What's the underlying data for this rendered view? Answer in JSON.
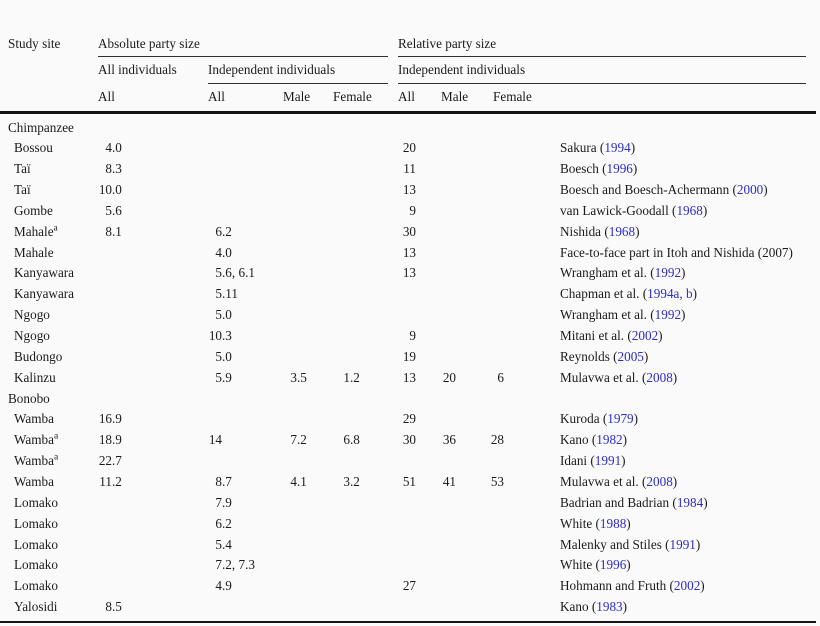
{
  "colors": {
    "link_blue": "#2b2bce",
    "text": "#1b1b1b",
    "rule": "#2e2e2e"
  },
  "table": {
    "header": {
      "study_site": "Study site",
      "group_absolute": "Absolute party size",
      "group_relative": "Relative party size",
      "abs_all_individuals": "All individuals",
      "abs_independent_individuals": "Independent individuals",
      "rel_independent_individuals": "Independent individuals",
      "sub": [
        "All",
        "All",
        "Male",
        "Female",
        "All",
        "Male",
        "Female"
      ]
    },
    "rows": [
      {
        "type": "group",
        "site": "Chimpanzee"
      },
      {
        "type": "data",
        "site": "Bossou",
        "abs_all": "4.0",
        "rel_all": "20",
        "ref_pre": "Sakura (",
        "ref_year": "1994",
        "ref_post": ")"
      },
      {
        "type": "data",
        "site": "Taï",
        "abs_all": "8.3",
        "rel_all": "11",
        "ref_pre": "Boesch (",
        "ref_year": "1996",
        "ref_post": ")"
      },
      {
        "type": "data",
        "site": "Taï",
        "abs_all": "10.0",
        "rel_all": "13",
        "ref_pre": "Boesch and Boesch-Achermann (",
        "ref_year": "2000",
        "ref_post": ")"
      },
      {
        "type": "data",
        "site": "Gombe",
        "abs_all": "5.6",
        "rel_all": "9",
        "ref_pre": "van Lawick-Goodall (",
        "ref_year": "1968",
        "ref_post": ")"
      },
      {
        "type": "data",
        "site": "Mahale",
        "sup": "a",
        "abs_all": "8.1",
        "ind_all": "6.2",
        "rel_all": "30",
        "ref_pre": "Nishida (",
        "ref_year": "1968",
        "ref_post": ")"
      },
      {
        "type": "data",
        "site": "Mahale",
        "ind_all": "4.0",
        "rel_all": "13",
        "ref_pre": "Face-to-face part in Itoh and Nishida (2007)",
        "ref_year": "",
        "ref_post": ""
      },
      {
        "type": "data",
        "site": "Kanyawara",
        "ind_all": "5.6, 6.1",
        "rel_all": "13",
        "ref_pre": "Wrangham et al. (",
        "ref_year": "1992",
        "ref_post": ")"
      },
      {
        "type": "data",
        "site": "Kanyawara",
        "ind_all": "5.11",
        "ref_pre": "Chapman et al. (",
        "ref_year": "1994a, b",
        "ref_post": ")"
      },
      {
        "type": "data",
        "site": "Ngogo",
        "ind_all": "5.0",
        "ref_pre": "Wrangham et al. (",
        "ref_year": "1992",
        "ref_post": ")"
      },
      {
        "type": "data",
        "site": "Ngogo",
        "ind_all": "10.3",
        "rel_all": "9",
        "ref_pre": "Mitani et al. (",
        "ref_year": "2002",
        "ref_post": ")"
      },
      {
        "type": "data",
        "site": "Budongo",
        "ind_all": "5.0",
        "rel_all": "19",
        "ref_pre": "Reynolds (",
        "ref_year": "2005",
        "ref_post": ")"
      },
      {
        "type": "data",
        "site": "Kalinzu",
        "ind_all": "5.9",
        "ind_male": "3.5",
        "ind_female": "1.2",
        "rel_all": "13",
        "rel_male": "20",
        "rel_female": "6",
        "ref_pre": "Mulavwa et al. (",
        "ref_year": "2008",
        "ref_post": ")"
      },
      {
        "type": "group",
        "site": "Bonobo"
      },
      {
        "type": "data",
        "site": "Wamba",
        "abs_all": "16.9",
        "rel_all": "29",
        "ref_pre": "Kuroda (",
        "ref_year": "1979",
        "ref_post": ")"
      },
      {
        "type": "data",
        "site": "Wamba",
        "sup": "a",
        "abs_all": "18.9",
        "ind_all": "14",
        "ind_male": "7.2",
        "ind_female": "6.8",
        "rel_all": "30",
        "rel_male": "36",
        "rel_female": "28",
        "ref_pre": "Kano (",
        "ref_year": "1982",
        "ref_post": ")"
      },
      {
        "type": "data",
        "site": "Wamba",
        "sup": "a",
        "abs_all": "22.7",
        "ref_pre": "Idani (",
        "ref_year": "1991",
        "ref_post": ")"
      },
      {
        "type": "data",
        "site": "Wamba",
        "abs_all": "11.2",
        "ind_all": "8.7",
        "ind_male": "4.1",
        "ind_female": "3.2",
        "rel_all": "51",
        "rel_male": "41",
        "rel_female": "53",
        "ref_pre": "Mulavwa et al. (",
        "ref_year": "2008",
        "ref_post": ")"
      },
      {
        "type": "data",
        "site": "Lomako",
        "ind_all": "7.9",
        "ref_pre": "Badrian and Badrian (",
        "ref_year": "1984",
        "ref_post": ")"
      },
      {
        "type": "data",
        "site": "Lomako",
        "ind_all": "6.2",
        "ref_pre": "White (",
        "ref_year": "1988",
        "ref_post": ")"
      },
      {
        "type": "data",
        "site": "Lomako",
        "ind_all": "5.4",
        "ref_pre": "Malenky and Stiles (",
        "ref_year": "1991",
        "ref_post": ")"
      },
      {
        "type": "data",
        "site": "Lomako",
        "ind_all": "7.2, 7.3",
        "ref_pre": "White (",
        "ref_year": "1996",
        "ref_post": ")"
      },
      {
        "type": "data",
        "site": "Lomako",
        "ind_all": "4.9",
        "rel_all": "27",
        "ref_pre": "Hohmann and Fruth (",
        "ref_year": "2002",
        "ref_post": ")"
      },
      {
        "type": "data",
        "site": "Yalosidi",
        "abs_all": "8.5",
        "ref_pre": "Kano (",
        "ref_year": "1983",
        "ref_post": ")"
      }
    ]
  }
}
